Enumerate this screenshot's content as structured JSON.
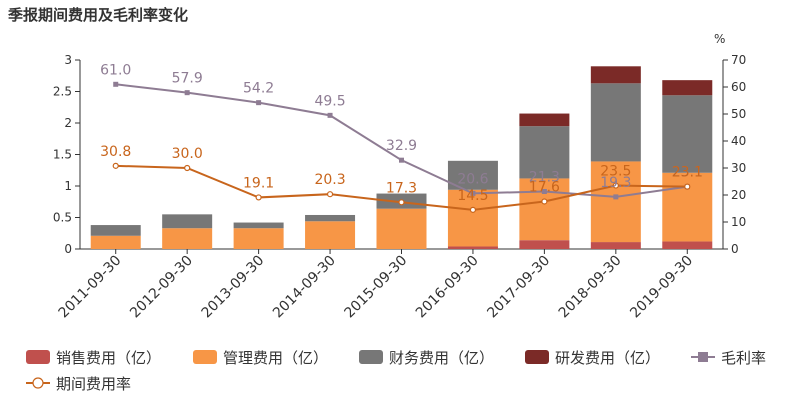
{
  "chart_data": {
    "type": "bar",
    "title": "季报期间费用及毛利率变化",
    "categories": [
      "2011-09-30",
      "2012-09-30",
      "2013-09-30",
      "2014-09-30",
      "2015-09-30",
      "2016-09-30",
      "2017-09-30",
      "2018-09-30",
      "2019-09-30"
    ],
    "stacked": true,
    "ylim": [
      0,
      3
    ],
    "y_ticks": [
      "0",
      "0.5",
      "1",
      "1.5",
      "2",
      "2.5",
      "3"
    ],
    "y2lim": [
      0,
      70
    ],
    "y2_ticks": [
      "0",
      "10",
      "20",
      "30",
      "40",
      "50",
      "60",
      "70"
    ],
    "y2_unit": "%",
    "grid": false,
    "legend_position": "bottom",
    "series": [
      {
        "name": "销售费用（亿）",
        "kind": "bar",
        "color": "#c0504d",
        "values": [
          0,
          0,
          0,
          0,
          0,
          0.04,
          0.14,
          0.11,
          0.12
        ]
      },
      {
        "name": "管理费用（亿）",
        "kind": "bar",
        "color": "#f79646",
        "values": [
          0.21,
          0.33,
          0.33,
          0.44,
          0.64,
          0.9,
          0.98,
          1.28,
          1.09
        ]
      },
      {
        "name": "财务费用（亿）",
        "kind": "bar",
        "color": "#777777",
        "values": [
          0.17,
          0.22,
          0.09,
          0.1,
          0.24,
          0.46,
          0.83,
          1.24,
          1.23
        ]
      },
      {
        "name": "研发费用（亿）",
        "kind": "bar",
        "color": "#7b2a27",
        "values": [
          0,
          0,
          0,
          0,
          0,
          0,
          0.2,
          0.27,
          0.24
        ]
      },
      {
        "name": "毛利率",
        "kind": "line",
        "axis": "right",
        "color": "#8e7c93",
        "marker": "square",
        "values": [
          61.0,
          57.9,
          54.2,
          49.5,
          32.9,
          20.6,
          21.3,
          19.3,
          23.1
        ],
        "labels": [
          "61.0",
          "57.9",
          "54.2",
          "49.5",
          "32.9",
          "20.6",
          "21.3",
          "19.3",
          "23.1"
        ]
      },
      {
        "name": "期间费用率",
        "kind": "line",
        "axis": "right",
        "color": "#c8651c",
        "marker": "circle",
        "values": [
          30.8,
          30.0,
          19.1,
          20.3,
          17.3,
          14.5,
          17.6,
          23.5,
          23.1
        ],
        "labels": [
          "30.8",
          "30.0",
          "19.1",
          "20.3",
          "17.3",
          "14.5",
          "17.6",
          "23.5",
          "23.1"
        ]
      }
    ]
  }
}
